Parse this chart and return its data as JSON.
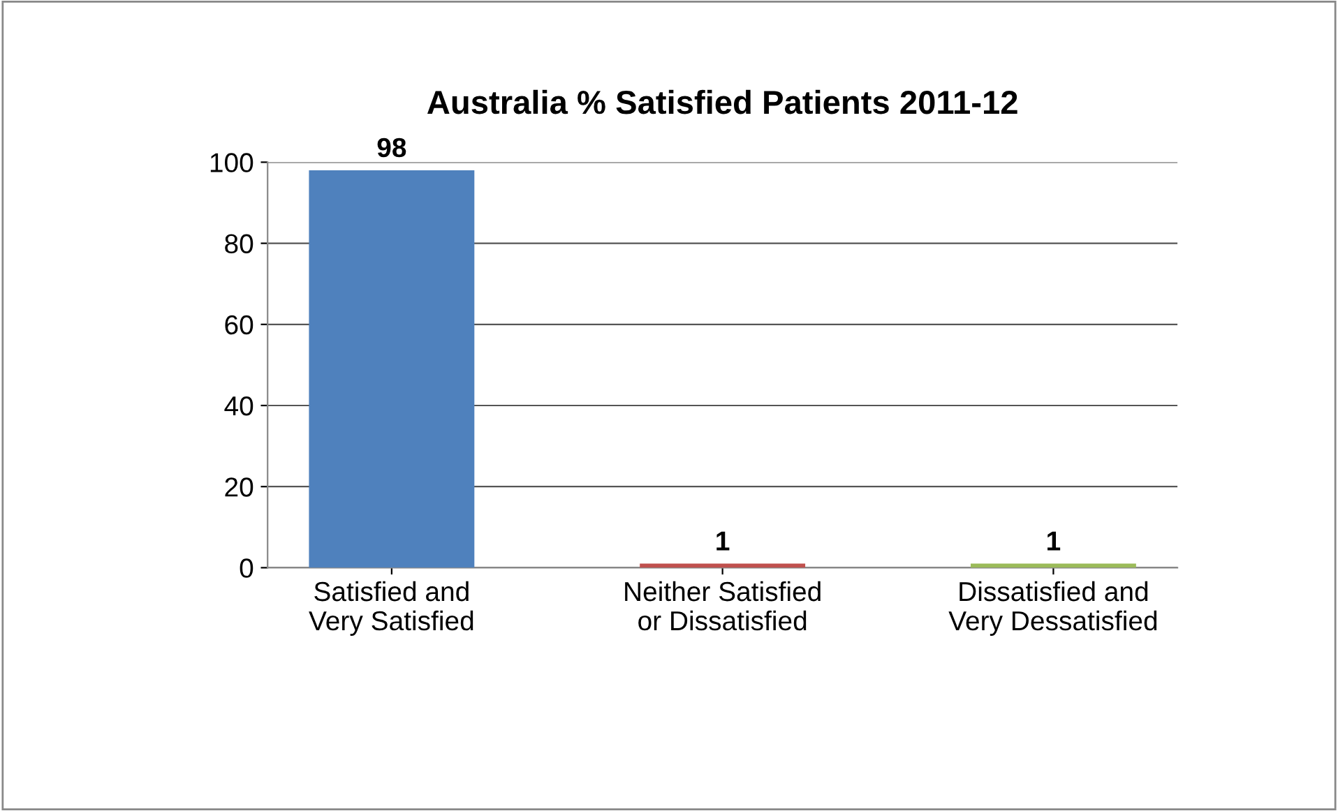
{
  "chart_data": {
    "type": "bar",
    "title": "Australia % Satisfied Patients 2011-12",
    "categories": [
      "Satisfied and Very Satisfied",
      "Neither Satisfied or Dissatisfied",
      "Dissatisfied and Very Dessatisfied"
    ],
    "values": [
      98,
      1,
      1
    ],
    "colors": [
      "#4f81bd",
      "#c0504d",
      "#9bbb59"
    ],
    "ylim": [
      0,
      100
    ],
    "yticks": [
      0,
      20,
      40,
      60,
      80,
      100
    ],
    "grid": "y",
    "data_labels": true
  }
}
